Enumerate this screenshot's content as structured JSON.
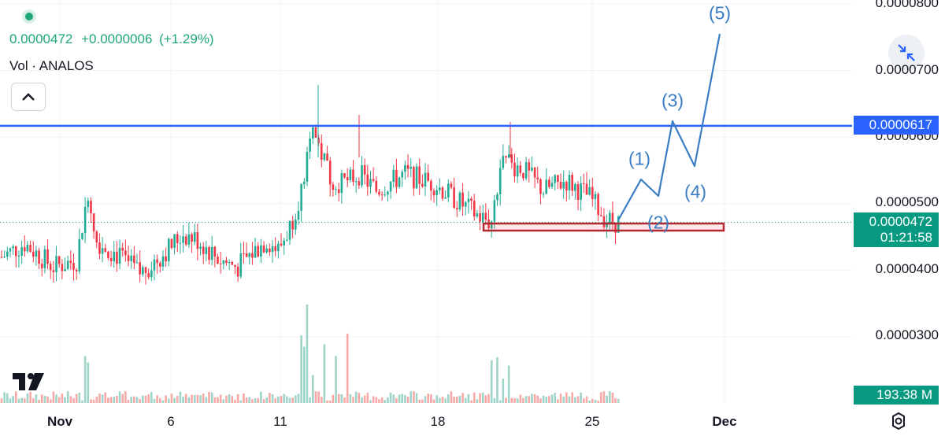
{
  "legend": {
    "price": "0.0000472",
    "change": "+0.0000006",
    "change_pct": "(+1.29%)",
    "volume_label": "Vol · ANALOS"
  },
  "price_axis": {
    "labels": [
      "0.0000800",
      "0.0000700",
      "0.0000600",
      "0.0000500",
      "0.0000400",
      "0.0000300"
    ]
  },
  "time_axis": {
    "labels": [
      "Nov",
      "6",
      "11",
      "18",
      "25",
      "Dec"
    ]
  },
  "horizontal_line": {
    "value": "0.0000617",
    "color": "#2962ff"
  },
  "last_price_tag": {
    "value": "0.0000472",
    "countdown": "01:21:58",
    "color": "#089981"
  },
  "volume_tag": {
    "value": "193.38 M",
    "color": "#089981"
  },
  "wave_labels": [
    "(1)",
    "(2)",
    "(3)",
    "(4)",
    "(5)"
  ],
  "colors": {
    "up": "#22ab94",
    "down": "#f23645",
    "vol_up": "#9fd4c8",
    "vol_down": "#f7a9a7",
    "projection": "#3a7dc4",
    "support_box": "#b22833"
  },
  "icons": {
    "collapse": "chevron-up-icon",
    "fullscreen": "exit-fullscreen-icon",
    "settings": "gear-icon",
    "logo": "tradingview-logo"
  }
}
